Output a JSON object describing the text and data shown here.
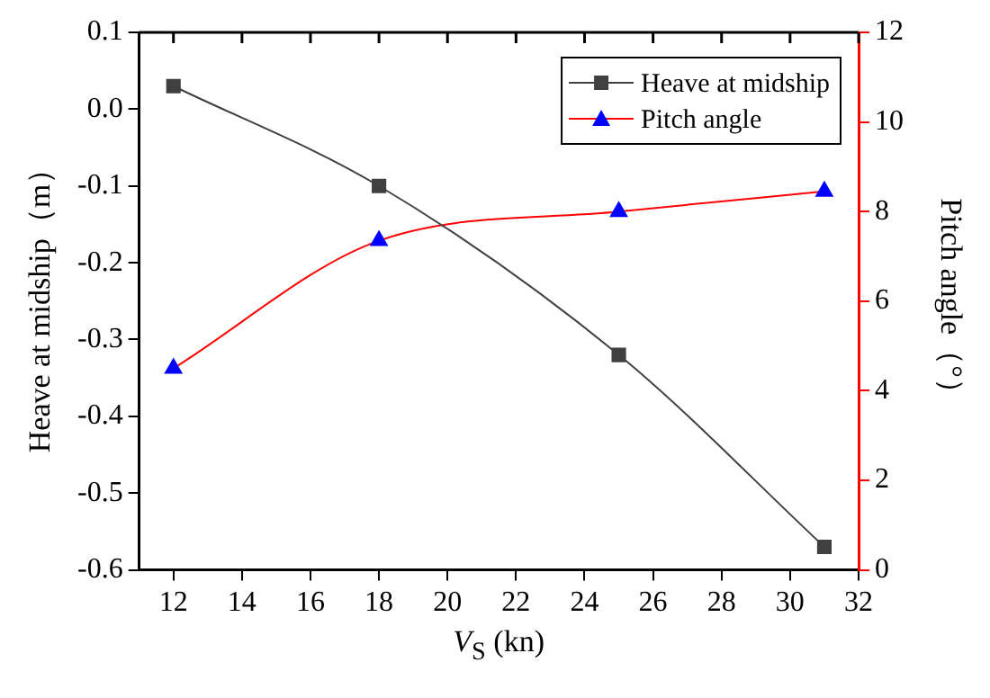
{
  "chart_data": {
    "type": "line",
    "xlabel": "V$_{S}$ (kn)",
    "ylabel": "Heave at midship（m）",
    "y2label": "Pitch angle（°）",
    "x": [
      12,
      18,
      25,
      31
    ],
    "series": [
      {
        "name": "Heave at midship",
        "color": "#404040",
        "values": [
          0.03,
          -0.1,
          -0.32,
          -0.57
        ],
        "marker": "square"
      },
      {
        "name": "Pitch angle",
        "color": "#ff0000",
        "values": [
          4.5,
          7.35,
          8.0,
          8.45
        ],
        "marker": "triangle",
        "axis": "y2"
      }
    ],
    "xlim": [
      11,
      32
    ],
    "xticks": [
      12,
      14,
      16,
      18,
      20,
      22,
      24,
      26,
      28,
      30,
      32
    ],
    "ylim": [
      -0.6,
      0.1
    ],
    "yticks": [
      -0.6,
      -0.5,
      -0.4,
      -0.3,
      -0.2,
      -0.1,
      {
        "value": 0,
        "label": "0.0"
      },
      0.1
    ],
    "y2lim": [
      0,
      12
    ],
    "y2ticks": [
      0,
      2,
      4,
      6,
      8,
      10,
      12
    ],
    "grid": false,
    "legend": "top right",
    "line_style": "solid"
  }
}
